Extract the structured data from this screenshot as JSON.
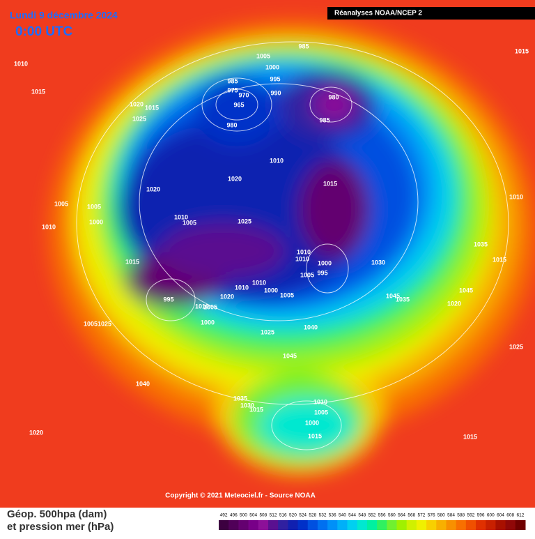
{
  "header": {
    "title": "Lundi 9 décembre 2024",
    "time": "0:00 UTC",
    "source": "Réanalyses NOAA/NCEP 2"
  },
  "copyright": "Copyright © 2021 Meteociel.fr - Source NOAA",
  "legend_lines": [
    "Géop. 500hpa (dam)",
    "et pression mer (hPa)"
  ],
  "colorbar": {
    "labels": [
      "492",
      "496",
      "500",
      "504",
      "508",
      "512",
      "516",
      "520",
      "524",
      "528",
      "532",
      "536",
      "540",
      "544",
      "548",
      "552",
      "556",
      "560",
      "564",
      "568",
      "572",
      "576",
      "580",
      "584",
      "588",
      "592",
      "596",
      "600",
      "604",
      "608",
      "612"
    ],
    "colors": [
      "#3c0040",
      "#500058",
      "#640070",
      "#780088",
      "#8c1098",
      "#5a1090",
      "#3020a0",
      "#1020b0",
      "#0030c8",
      "#0050e0",
      "#0070f0",
      "#0090f8",
      "#00b0f8",
      "#00d0f0",
      "#00e8d0",
      "#00f0a0",
      "#30f060",
      "#70f030",
      "#a0f000",
      "#d0f000",
      "#f0f000",
      "#f8d000",
      "#f8b000",
      "#f89000",
      "#f87000",
      "#f05000",
      "#e03000",
      "#c82000",
      "#a81000",
      "#900808",
      "#700000"
    ]
  },
  "pressure_labels": [
    1010,
    1015,
    1020,
    1015,
    1025,
    1005,
    985,
    1000,
    995,
    985,
    975,
    970,
    965,
    990,
    980,
    985,
    980,
    1010,
    1020,
    1015,
    1020,
    1005,
    1005,
    1000,
    1010,
    1010,
    1005,
    1025,
    1010,
    1010,
    1000,
    995,
    1005,
    1030,
    1015,
    995,
    1010,
    1005,
    1020,
    1010,
    1010,
    1000,
    1005,
    1000,
    1005,
    1025,
    1025,
    1040,
    1045,
    1045,
    1035,
    1045,
    1020,
    1035,
    1015,
    1010,
    1015,
    1025,
    1040,
    1035,
    1030,
    1015,
    1010,
    1005,
    1000,
    1015,
    1020,
    1015
  ]
}
